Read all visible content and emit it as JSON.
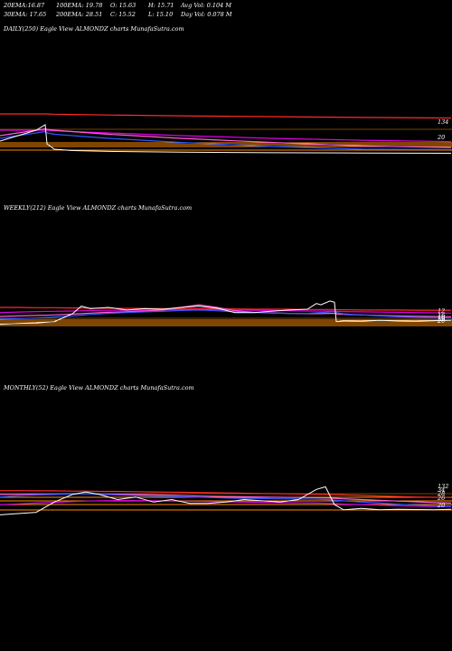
{
  "header": {
    "row1": [
      {
        "label": "20EMA:",
        "value": "16.87"
      },
      {
        "label": "100EMA:",
        "value": "19.78"
      },
      {
        "label": "O:",
        "value": "15.63"
      },
      {
        "label": "H:",
        "value": "15.71"
      },
      {
        "label": "Avg Vol:",
        "value": "0.104",
        "suffix": "M"
      }
    ],
    "row2": [
      {
        "label": "30EMA:",
        "value": "17.65"
      },
      {
        "label": "200EMA:",
        "value": "28.51"
      },
      {
        "label": "C:",
        "value": "15.52"
      },
      {
        "label": "L:",
        "value": "15.10"
      },
      {
        "label": "Day Vol:",
        "value": "0.078",
        "suffix": "M"
      }
    ]
  },
  "colors": {
    "background": "#000000",
    "price": "#ffffff",
    "ema_blue": "#2f57ff",
    "ema_pink": "#ff5fd4",
    "ema_magenta": "#e000e0",
    "ema_red": "#ff2a2a",
    "orange_level": "#ff8c00",
    "ema_amber": "#e0b040"
  },
  "chart_data": [
    {
      "type": "line",
      "title": "DAILY(250) Eagle  View  ALMONDZ charts MunafaSutra.com",
      "level_labels": [
        "134",
        "20"
      ],
      "x": [
        0,
        10,
        20,
        30,
        40,
        50,
        52,
        60,
        80,
        120,
        200,
        300,
        400,
        499
      ],
      "series": [
        {
          "values": [
            20,
            21,
            22,
            23,
            24,
            26,
            19,
            17,
            16.5,
            16.2,
            15.9,
            15.7,
            15.6,
            15.5
          ]
        },
        {
          "values": [
            21,
            21.5,
            22,
            22.5,
            23,
            23.5,
            23,
            22.5,
            22,
            21,
            19.5,
            18,
            17,
            16.9
          ]
        },
        {
          "values": [
            22,
            22.5,
            23,
            23.5,
            24,
            24.5,
            24.3,
            24,
            23.5,
            22.5,
            21,
            19.5,
            18.2,
            17.6
          ]
        },
        {
          "values": [
            24,
            24,
            24,
            24,
            24,
            24,
            24,
            23.8,
            23.5,
            23,
            22,
            21,
            20.3,
            19.8
          ]
        },
        {
          "values": [
            30,
            30,
            30,
            30,
            30,
            30,
            30,
            29.9,
            29.8,
            29.6,
            29.3,
            29,
            28.7,
            28.5
          ]
        }
      ],
      "levels": [
        134,
        20,
        22,
        26,
        28.5
      ],
      "ylim": [
        12,
        32
      ]
    },
    {
      "type": "line",
      "title": "WEEKLY(212) Eagle  View  ALMONDZ charts MunafaSutra.com",
      "level_labels": [
        "12",
        "16",
        "18",
        "19",
        "20"
      ],
      "x": [
        0,
        20,
        40,
        60,
        80,
        90,
        100,
        120,
        140,
        160,
        180,
        200,
        220,
        240,
        260,
        280,
        300,
        320,
        340,
        350,
        355,
        365,
        370,
        372,
        380,
        400,
        420,
        440,
        460,
        480,
        499
      ],
      "series": [
        {
          "values": [
            14,
            14.3,
            14.5,
            15,
            18,
            21,
            20,
            20.5,
            19.5,
            20,
            19.8,
            20.5,
            21,
            20.2,
            18.5,
            18.5,
            19,
            19.5,
            19.8,
            22,
            21.5,
            23,
            22.5,
            15,
            15.3,
            15.2,
            15.5,
            15.3,
            15.2,
            15.4,
            15.5
          ]
        },
        {
          "values": [
            16,
            16.2,
            16.4,
            16.8,
            17.2,
            17.5,
            17.8,
            18.2,
            18.5,
            18.8,
            19,
            19.3,
            19.5,
            19.2,
            18.8,
            18.5,
            18.3,
            18.2,
            18.2,
            18.4,
            18.5,
            18.8,
            18.9,
            18.5,
            18,
            17.6,
            17.2,
            16.9,
            16.7,
            16.5,
            16.4
          ]
        },
        {
          "values": [
            17,
            17.2,
            17.4,
            17.6,
            17.9,
            18.1,
            18.3,
            18.6,
            18.8,
            19.1,
            19.5,
            20.5,
            21.5,
            20.5,
            19.2,
            18.6,
            18.4,
            18.2,
            18.1,
            18.1,
            18.1,
            18.2,
            18.2,
            18,
            17.8,
            17.6,
            17.4,
            17.2,
            17.1,
            17,
            16.9
          ]
        },
        {
          "values": [
            18.5,
            18.7,
            18.9,
            19,
            19.1,
            19.2,
            19.3,
            19.4,
            19.4,
            19.5,
            19.6,
            19.6,
            19.7,
            19.6,
            19.5,
            19.4,
            19.3,
            19.2,
            19.1,
            19.1,
            19.1,
            19.1,
            19.1,
            19,
            18.9,
            18.8,
            18.7,
            18.6,
            18.5,
            18.4,
            18.3
          ]
        },
        {
          "values": [
            20.5,
            20.5,
            20.4,
            20.4,
            20.3,
            20.3,
            20.2,
            20.2,
            20.1,
            20.1,
            20,
            20,
            20,
            19.9,
            19.9,
            19.8,
            19.8,
            19.8,
            19.7,
            19.7,
            19.7,
            19.7,
            19.7,
            19.6,
            19.6,
            19.5,
            19.5,
            19.5,
            19.4,
            19.4,
            19.4
          ]
        }
      ],
      "levels": [
        12,
        16,
        18,
        19,
        20
      ],
      "ylim": [
        10,
        24
      ]
    },
    {
      "type": "line",
      "title": "MONTHLY(52) Eagle  View  ALMONDZ charts MunafaSutra.com",
      "level_labels": [
        "132",
        "34",
        "28",
        "26",
        "20"
      ],
      "x": [
        0,
        20,
        40,
        60,
        80,
        95,
        110,
        130,
        150,
        170,
        190,
        210,
        230,
        250,
        270,
        290,
        310,
        330,
        350,
        360,
        370,
        380,
        400,
        420,
        440,
        460,
        480,
        499
      ],
      "series": [
        {
          "values": [
            12,
            12.5,
            13,
            17,
            20,
            21,
            20,
            18,
            19,
            17,
            18,
            16.5,
            16.5,
            17,
            18,
            17.5,
            17,
            18,
            22,
            23,
            16,
            14,
            14.5,
            14,
            14.2,
            14.1,
            14,
            14.2
          ]
        },
        {
          "values": [
            19,
            19.5,
            19.8,
            20,
            20.2,
            20.3,
            20.1,
            19.8,
            19.6,
            19.4,
            19.2,
            19,
            18.8,
            18.6,
            18.5,
            18.4,
            18.3,
            18.2,
            18.1,
            18,
            17.8,
            17.5,
            17,
            16.6,
            16.2,
            15.8,
            15.5,
            15.3
          ]
        },
        {
          "values": [
            20,
            20.1,
            20.2,
            20.2,
            20.3,
            20.3,
            20.2,
            20.1,
            20,
            19.9,
            19.7,
            19.5,
            19.3,
            19.2,
            19.1,
            19,
            18.9,
            18.8,
            18.7,
            18.6,
            18.5,
            18.3,
            18,
            17.7,
            17.4,
            17.1,
            16.8,
            16.6
          ]
        },
        {
          "values": [
            16,
            16.3,
            16.6,
            16.9,
            17.2,
            17.4,
            17.5,
            17.6,
            17.6,
            17.5,
            17.4,
            17.3,
            17.2,
            17.1,
            17,
            16.9,
            16.8,
            16.7,
            16.6,
            16.5,
            16.4,
            16.2,
            16,
            15.8,
            15.6,
            15.4,
            15.3,
            15.2
          ]
        },
        {
          "values": [
            21.5,
            21.5,
            21.4,
            21.4,
            21.3,
            21.3,
            21.2,
            21.2,
            21.1,
            21,
            20.9,
            20.8,
            20.7,
            20.6,
            20.5,
            20.4,
            20.3,
            20.2,
            20.1,
            20,
            19.9,
            19.8,
            19.6,
            19.4,
            19.2,
            19,
            18.9,
            18.8
          ]
        }
      ],
      "levels": [
        21.5,
        20.5,
        19.5,
        17.5,
        12.5
      ],
      "ylim": [
        10,
        26
      ]
    }
  ]
}
